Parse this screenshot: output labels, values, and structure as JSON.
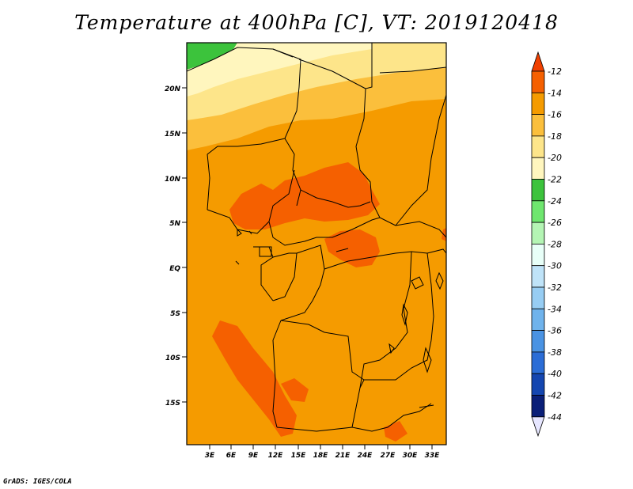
{
  "title": "Temperature at 400hPa [C], VT: 2019120418",
  "credit": "GrADS: IGES/COLA",
  "map": {
    "lat_ticks": [
      "20N",
      "15N",
      "10N",
      "5N",
      "EQ",
      "5S",
      "10S",
      "15S"
    ],
    "lon_ticks": [
      "3E",
      "6E",
      "9E",
      "12E",
      "15E",
      "18E",
      "21E",
      "24E",
      "27E",
      "30E",
      "33E"
    ]
  },
  "colorbar": {
    "labels": [
      "-12",
      "-14",
      "-16",
      "-18",
      "-20",
      "-22",
      "-24",
      "-26",
      "-28",
      "-30",
      "-32",
      "-34",
      "-36",
      "-38",
      "-40",
      "-42",
      "-44"
    ],
    "colors": {
      "gt_-12": "#f04000",
      "-14_-12": "#f56000",
      "-16_-14": "#f59b00",
      "-18_-16": "#fbbf3c",
      "-20_-18": "#fde58a",
      "-22_-20": "#fff6be",
      "-24_-22": "#3cc33c",
      "-26_-24": "#6ee66e",
      "-28_-26": "#b4f5b4",
      "-30_-28": "#e8fff8",
      "-32_-30": "#bfe3f8",
      "-34_-32": "#97cdf3",
      "-36_-34": "#6fb3ec",
      "-38_-36": "#4a93e3",
      "-40_-38": "#2b6dd6",
      "-42_-40": "#1446b0",
      "-44_-42": "#0a1f78",
      "lt_-44": "#e6e6ff"
    }
  }
}
